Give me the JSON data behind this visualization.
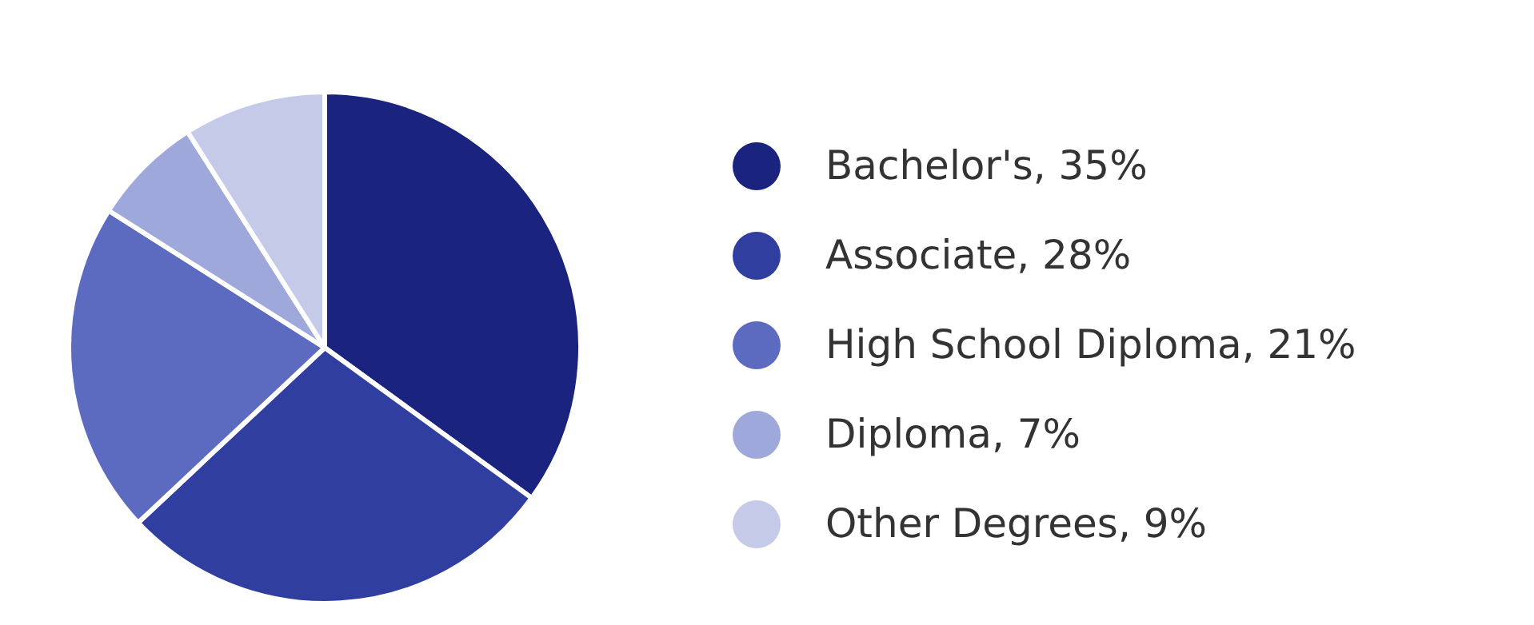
{
  "chart_data": {
    "type": "pie",
    "categories": [
      "Bachelor's",
      "Associate",
      "High School Diploma",
      "Diploma",
      "Other Degrees"
    ],
    "values": [
      35,
      28,
      21,
      7,
      9
    ],
    "value_labels": [
      "35%",
      "28%",
      "21%",
      "7%",
      "9%"
    ],
    "colors": [
      "#1a237e",
      "#303f9f",
      "#5c6bc0",
      "#9fa8da",
      "#c5cae9"
    ],
    "legend": "right"
  }
}
